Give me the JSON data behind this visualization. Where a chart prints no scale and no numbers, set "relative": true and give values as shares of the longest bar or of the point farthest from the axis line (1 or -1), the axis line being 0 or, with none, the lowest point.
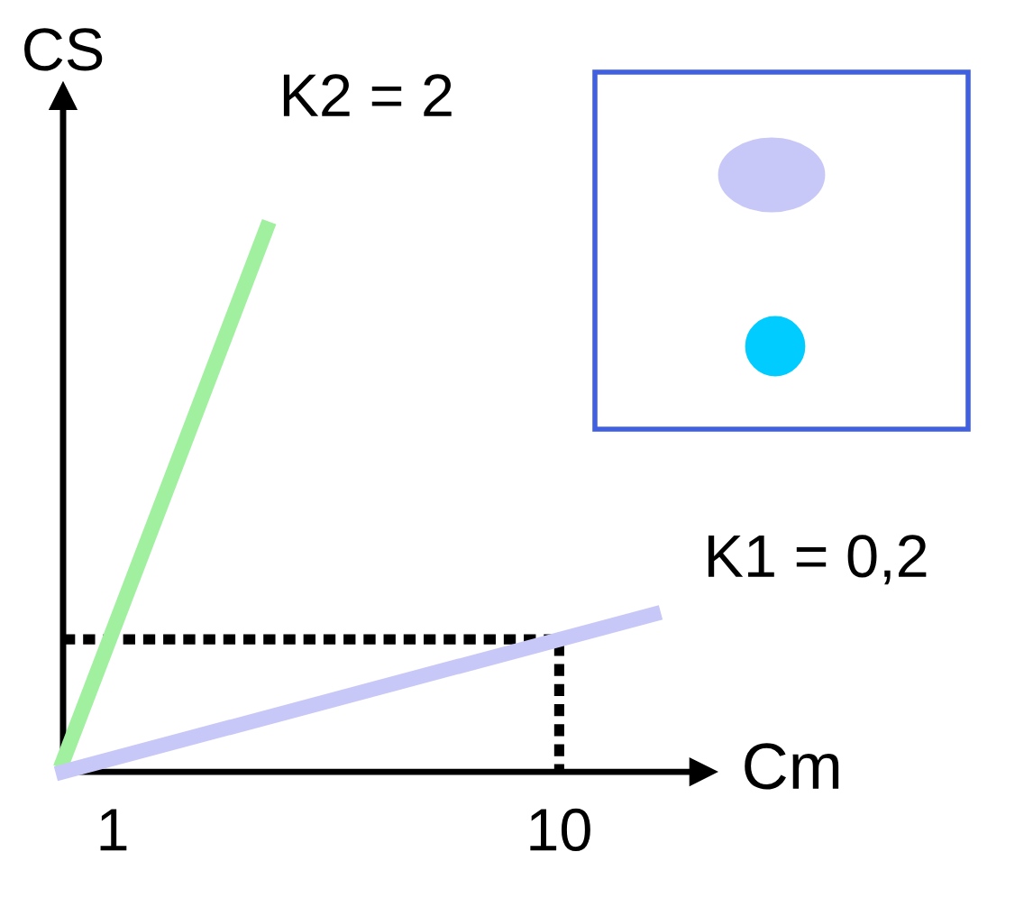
{
  "chart_data": {
    "type": "line",
    "xlabel": "Cm",
    "ylabel": "CS",
    "relative": true,
    "xlim": [
      0,
      12.9
    ],
    "xticks": [
      1,
      10
    ],
    "grid": false,
    "legend": false,
    "marker": "none",
    "series": [
      {
        "name": "K2 = 2",
        "color": "#a0f0a0",
        "x": [
          0,
          4.1
        ],
        "values": [
          0.02,
          1.0
        ],
        "line_style": "solid"
      },
      {
        "name": "K1 = 0,2",
        "color": "#c8c8f8",
        "x": [
          0,
          11.9
        ],
        "values": [
          0,
          0.29
        ],
        "line_style": "solid"
      },
      {
        "color": "#000000",
        "x": [
          0,
          10,
          10
        ],
        "values": [
          0.244,
          0.244,
          0
        ],
        "line_style": "dotted"
      }
    ]
  }
}
